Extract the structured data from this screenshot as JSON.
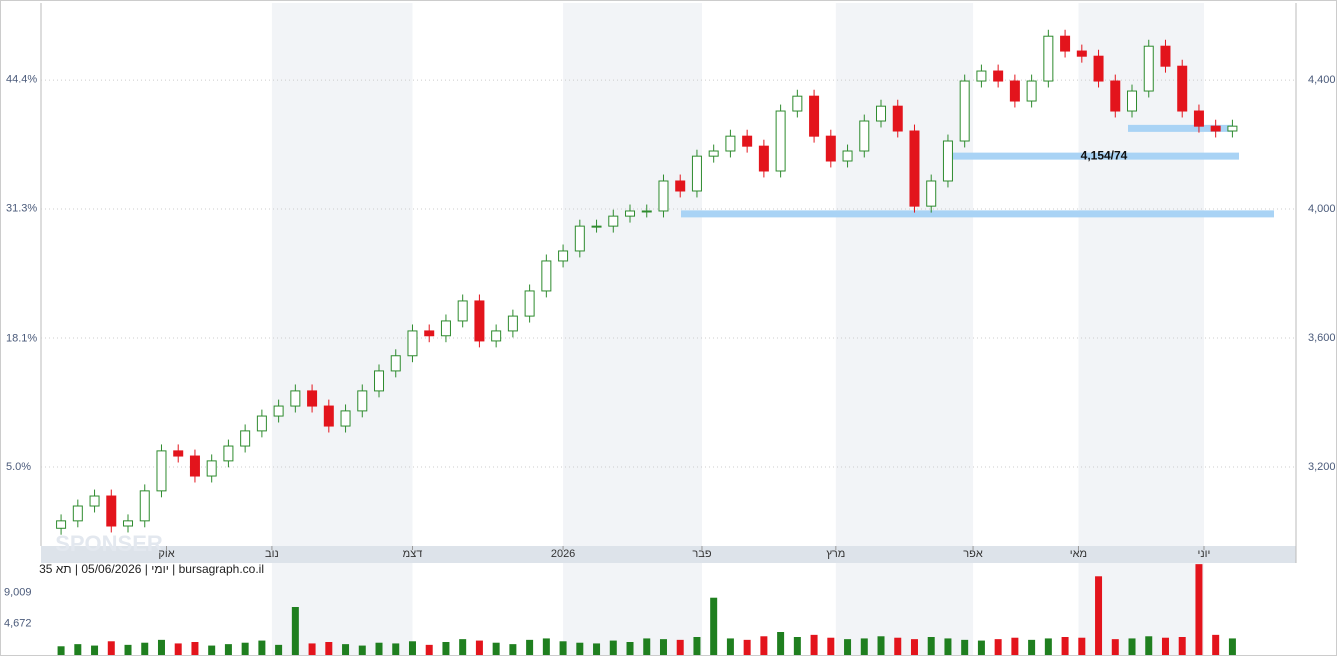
{
  "chart_data": {
    "type": "candlestick",
    "caption": "יומי | 05/06/2026 | תא 35 | bursagraph.co.il",
    "watermark": "SPONSER",
    "up_color": "#2e8b2e",
    "down_color": "#e3141c",
    "x": [
      0,
      1,
      2,
      3,
      4,
      5,
      6,
      7,
      8,
      9,
      10,
      11,
      12,
      13,
      14,
      15,
      16,
      17,
      18,
      19,
      20,
      21,
      22,
      23,
      24,
      25,
      26,
      27,
      28,
      29,
      30,
      31,
      32,
      33,
      34,
      35,
      36,
      37,
      38,
      39,
      40,
      41,
      42,
      43,
      44,
      45,
      46,
      47,
      48,
      49,
      50,
      51,
      52,
      53,
      54,
      55,
      56,
      57,
      58,
      59,
      60,
      61,
      62,
      63,
      64,
      65,
      66,
      67,
      68,
      69,
      70
    ],
    "open": [
      3010,
      3033,
      3079,
      3110,
      3017,
      3033,
      3126,
      3250,
      3234,
      3172,
      3219,
      3265,
      3312,
      3358,
      3389,
      3436,
      3389,
      3327,
      3374,
      3436,
      3498,
      3545,
      3622,
      3607,
      3653,
      3715,
      3591,
      3622,
      3668,
      3746,
      3839,
      3870,
      3947,
      3947,
      3978,
      3994,
      3994,
      4087,
      4056,
      4164,
      4180,
      4226,
      4195,
      4118,
      4304,
      4350,
      4226,
      4149,
      4180,
      4273,
      4319,
      4242,
      4009,
      4087,
      4211,
      4397,
      4428,
      4397,
      4335,
      4397,
      4536,
      4490,
      4474,
      4397,
      4304,
      4366,
      4505,
      4443,
      4304,
      4257,
      4242
    ],
    "high": [
      3053,
      3099,
      3130,
      3130,
      3053,
      3146,
      3270,
      3270,
      3254,
      3239,
      3285,
      3332,
      3378,
      3409,
      3456,
      3456,
      3409,
      3394,
      3456,
      3518,
      3565,
      3642,
      3642,
      3673,
      3735,
      3735,
      3642,
      3688,
      3766,
      3859,
      3890,
      3967,
      3967,
      3998,
      4014,
      4014,
      4107,
      4107,
      4184,
      4200,
      4246,
      4246,
      4215,
      4324,
      4370,
      4370,
      4246,
      4200,
      4293,
      4339,
      4339,
      4262,
      4107,
      4231,
      4417,
      4448,
      4448,
      4417,
      4417,
      4556,
      4556,
      4510,
      4494,
      4417,
      4386,
      4525,
      4525,
      4463,
      4324,
      4277,
      4277
    ],
    "low": [
      2990,
      3013,
      3059,
      2997,
      2997,
      3013,
      3106,
      3214,
      3152,
      3152,
      3199,
      3245,
      3292,
      3338,
      3369,
      3369,
      3307,
      3307,
      3354,
      3416,
      3478,
      3525,
      3587,
      3587,
      3633,
      3571,
      3571,
      3602,
      3648,
      3726,
      3819,
      3850,
      3927,
      3927,
      3958,
      3974,
      3974,
      4036,
      4036,
      4144,
      4160,
      4175,
      4098,
      4098,
      4284,
      4206,
      4129,
      4129,
      4160,
      4253,
      4222,
      3989,
      3989,
      4067,
      4191,
      4377,
      4377,
      4315,
      4315,
      4377,
      4470,
      4454,
      4377,
      4284,
      4284,
      4346,
      4423,
      4284,
      4237,
      4222,
      4222
    ],
    "close": [
      3033,
      3079,
      3110,
      3017,
      3033,
      3126,
      3250,
      3234,
      3172,
      3219,
      3265,
      3312,
      3358,
      3389,
      3436,
      3389,
      3327,
      3374,
      3436,
      3498,
      3545,
      3622,
      3607,
      3653,
      3715,
      3591,
      3622,
      3668,
      3746,
      3839,
      3870,
      3947,
      3947,
      3978,
      3994,
      3994,
      4087,
      4056,
      4164,
      4180,
      4226,
      4195,
      4118,
      4304,
      4350,
      4226,
      4149,
      4180,
      4273,
      4319,
      4242,
      4009,
      4087,
      4211,
      4397,
      4428,
      4397,
      4335,
      4397,
      4536,
      4490,
      4474,
      4397,
      4304,
      4366,
      4505,
      4443,
      4304,
      4257,
      4242,
      4257
    ],
    "xlim": [
      -1.2,
      73.8
    ],
    "xticks": [
      {
        "value": 6.3,
        "label": "אוק"
      },
      {
        "value": 12.6,
        "label": "נוב"
      },
      {
        "value": 21,
        "label": "דצמ"
      },
      {
        "value": 30,
        "label": "2026"
      },
      {
        "value": 38.3,
        "label": "פבר"
      },
      {
        "value": 46.3,
        "label": "מרץ"
      },
      {
        "value": 54.5,
        "label": "אפר"
      },
      {
        "value": 60.8,
        "label": "מאי"
      },
      {
        "value": 68.3,
        "label": "יוני"
      }
    ],
    "ylim": [
      2955,
      4639
    ],
    "yticks": [
      {
        "value": 3200,
        "label": "3,200"
      },
      {
        "value": 3600,
        "label": "3,600"
      },
      {
        "value": 4000,
        "label": "4,000"
      },
      {
        "value": 4400,
        "label": "4,400"
      }
    ],
    "y2lim": [
      -3.0,
      52.2
    ],
    "y2ticks": [
      {
        "value": 5.0,
        "label": "5.0%"
      },
      {
        "value": 18.1,
        "label": "18.1%"
      },
      {
        "value": 31.3,
        "label": "31.3%"
      },
      {
        "value": 44.4,
        "label": "44.4%"
      }
    ],
    "grid": true,
    "levels": [
      {
        "value": 3985,
        "color": "#a9d3f5"
      },
      {
        "value": 4164,
        "color": "#a9d3f5",
        "label": "4,154/74"
      },
      {
        "value": 4250,
        "color": "#a9d3f5"
      }
    ],
    "volume": {
      "values": [
        1500,
        1800,
        1600,
        2200,
        1700,
        2000,
        2400,
        1900,
        2100,
        1600,
        1800,
        2000,
        2300,
        1700,
        7000,
        1900,
        2100,
        1800,
        1600,
        2000,
        1900,
        2200,
        1700,
        2100,
        2500,
        2300,
        2000,
        1800,
        2400,
        2600,
        2200,
        2000,
        1900,
        2300,
        2100,
        2600,
        2500,
        2400,
        2800,
        8300,
        2600,
        2400,
        2900,
        3500,
        2800,
        3100,
        2700,
        2500,
        2600,
        2900,
        2700,
        2500,
        2800,
        2600,
        2400,
        2300,
        2500,
        2700,
        2400,
        2600,
        2800,
        2700,
        11300,
        2500,
        2600,
        2900,
        2700,
        2800,
        13000,
        3100,
        2600
      ],
      "ylim": [
        0,
        13160
      ],
      "yticks": [
        {
          "value": 4672,
          "label": "4,672"
        },
        {
          "value": 9009,
          "label": "9,009"
        }
      ]
    }
  }
}
